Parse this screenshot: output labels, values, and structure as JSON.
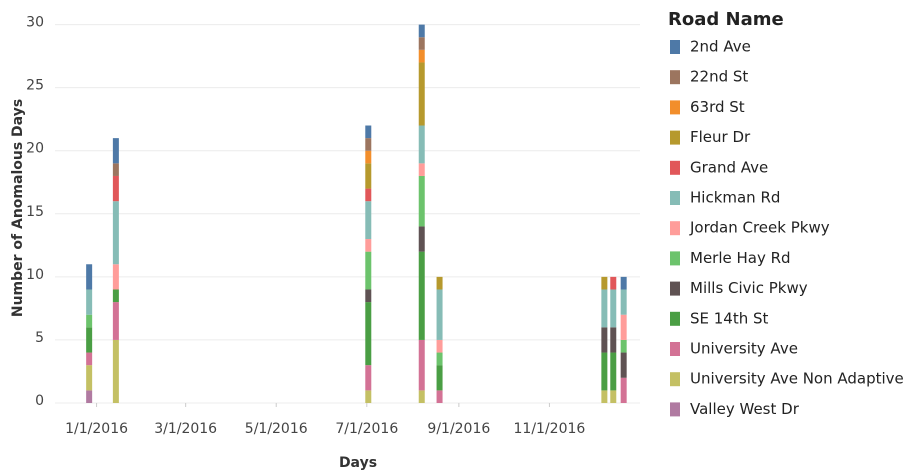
{
  "chart_data": {
    "type": "stacked-bar",
    "y_label": "Number of Anomalous Days",
    "x_label": "Days",
    "legend_title": "Road Name",
    "x": [
      "12/27/2015",
      "1/14/2016",
      "7/2/2016",
      "8/7/2016",
      "8/19/2016",
      "12/8/2016",
      "12/14/2016",
      "12/21/2016"
    ],
    "xlim": [
      "12/4/2015",
      "1/1/2017"
    ],
    "xticks": [
      "1/1/2016",
      "3/1/2016",
      "5/1/2016",
      "7/1/2016",
      "9/1/2016",
      "11/1/2016"
    ],
    "ylim": [
      0,
      31
    ],
    "yticks": [
      0,
      5,
      10,
      15,
      20,
      25,
      30
    ],
    "grid": true,
    "series": [
      {
        "name": "2nd Ave",
        "color": "#4e79a7",
        "values": [
          2,
          2,
          1,
          1,
          0,
          0,
          0,
          1
        ]
      },
      {
        "name": "22nd St",
        "color": "#9c755f",
        "values": [
          0,
          1,
          1,
          1,
          0,
          0,
          0,
          0
        ]
      },
      {
        "name": "63rd St",
        "color": "#f28e2b",
        "values": [
          0,
          0,
          1,
          1,
          0,
          0,
          0,
          0
        ]
      },
      {
        "name": "Fleur Dr",
        "color": "#b6992d",
        "values": [
          0,
          0,
          2,
          5,
          1,
          1,
          0,
          0
        ]
      },
      {
        "name": "Grand Ave",
        "color": "#e15759",
        "values": [
          0,
          2,
          1,
          0,
          0,
          0,
          1,
          0
        ]
      },
      {
        "name": "Hickman Rd",
        "color": "#86bcb6",
        "values": [
          2,
          5,
          3,
          3,
          4,
          3,
          3,
          2
        ]
      },
      {
        "name": "Jordan Creek Pkwy",
        "color": "#ff9d9a",
        "values": [
          0,
          2,
          1,
          1,
          1,
          0,
          0,
          2
        ]
      },
      {
        "name": "Merle Hay Rd",
        "color": "#6cc36c",
        "values": [
          1,
          0,
          3,
          4,
          1,
          0,
          0,
          1
        ]
      },
      {
        "name": "Mills Civic Pkwy",
        "color": "#5f5253",
        "values": [
          0,
          0,
          1,
          2,
          0,
          2,
          2,
          2
        ]
      },
      {
        "name": "SE 14th St",
        "color": "#4a9e44",
        "values": [
          2,
          1,
          5,
          7,
          2,
          3,
          3,
          0
        ]
      },
      {
        "name": "University Ave",
        "color": "#d37295",
        "values": [
          1,
          3,
          2,
          4,
          1,
          0,
          0,
          2
        ]
      },
      {
        "name": "University Ave Non Adaptive",
        "color": "#c4c064",
        "values": [
          2,
          5,
          1,
          1,
          0,
          1,
          1,
          0
        ]
      },
      {
        "name": "Valley West Dr",
        "color": "#b07aa1",
        "values": [
          1,
          0,
          0,
          0,
          0,
          0,
          0,
          0
        ]
      }
    ]
  }
}
